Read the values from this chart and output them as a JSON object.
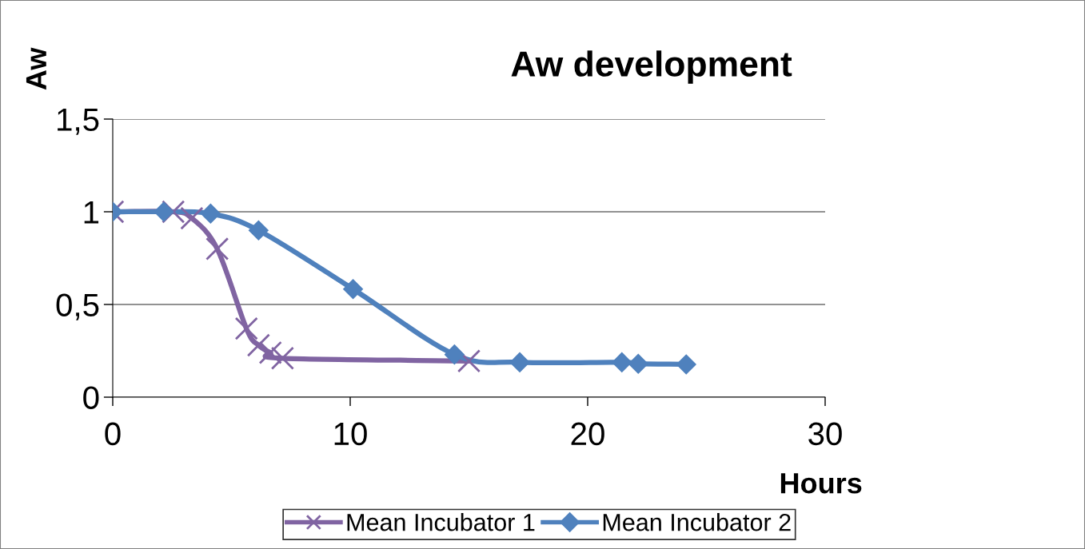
{
  "chart_data": {
    "type": "line",
    "title": "Aw development",
    "xlabel": "Hours",
    "ylabel": "Aw",
    "series": [
      {
        "name": "Mean Incubator 1",
        "color": "#8064a2",
        "marker": "cross",
        "x": [
          0,
          2.55,
          3.33,
          4.4,
          5.63,
          6.14,
          6.64,
          7.15,
          15.0
        ],
        "values": [
          1.0,
          1.0,
          0.965,
          0.8,
          0.37,
          0.28,
          0.24,
          0.21,
          0.195
        ]
      },
      {
        "name": "Mean Incubator 2",
        "color": "#4f81bd",
        "marker": "diamond",
        "x": [
          0,
          2.15,
          4.12,
          6.14,
          10.12,
          14.39,
          17.14,
          21.44,
          22.13,
          24.15
        ],
        "values": [
          1.0,
          1.0,
          0.99,
          0.9,
          0.583,
          0.23,
          0.188,
          0.188,
          0.18,
          0.177
        ]
      }
    ],
    "xlim": [
      0,
      30
    ],
    "xticks": [
      0,
      10,
      20,
      30
    ],
    "ylim": [
      0,
      1.5
    ],
    "yticks": [
      0,
      {
        "value": 0.5,
        "label": "0,5"
      },
      1,
      {
        "value": 1.5,
        "label": "1,5"
      }
    ],
    "grid": "y",
    "legend": "bottom",
    "line_style": "solid"
  }
}
